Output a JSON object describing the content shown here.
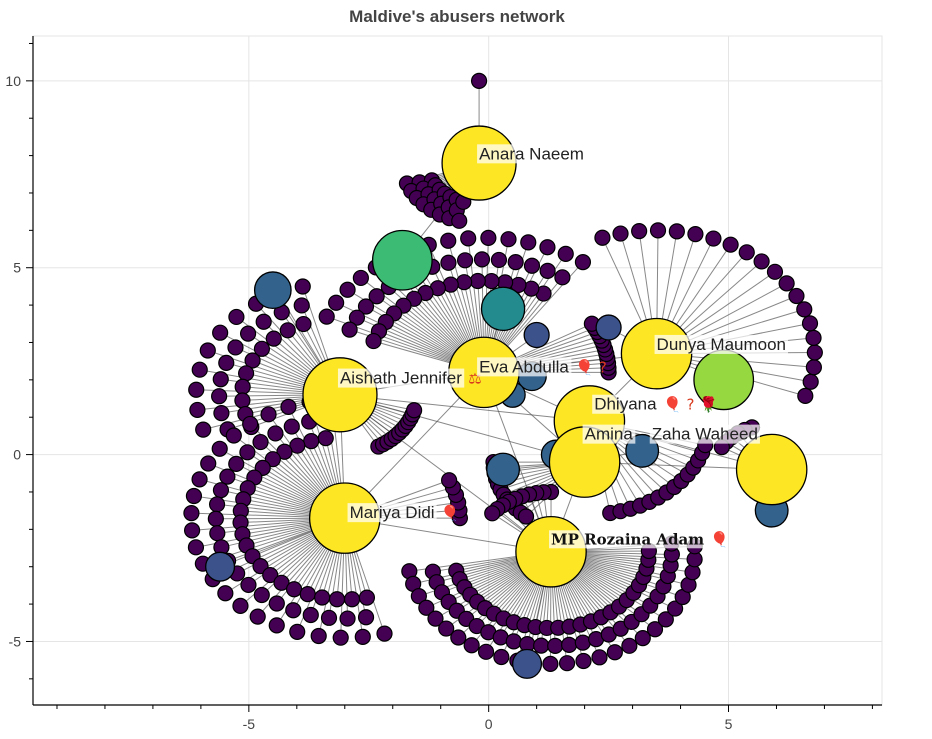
{
  "chart_data": {
    "type": "network",
    "title": "Maldive's abusers network",
    "xlim": [
      -9.5,
      8.2
    ],
    "ylim": [
      -6.7,
      11.2
    ],
    "x_ticks": [
      -5,
      0,
      5
    ],
    "y_ticks": [
      -5,
      0,
      5,
      10
    ],
    "x_tick_labels": [
      "-5",
      "0",
      "5"
    ],
    "y_tick_labels": [
      "-5",
      "0",
      "5",
      "10"
    ],
    "grid": true,
    "hubs": [
      {
        "name": "Anara Naeem",
        "x": -0.2,
        "y": 7.8,
        "size": 1.0,
        "color": "#fde725",
        "label_text": "Anara Naeem",
        "label_offset": [
          0.0,
          0.1
        ],
        "label_style": "plain",
        "icons": ""
      },
      {
        "name": "Aishath Jennifer",
        "x": -3.1,
        "y": 1.6,
        "size": 1.0,
        "color": "#fde725",
        "label_text": "Aishath Jennifer",
        "label_offset": [
          0.0,
          0.3
        ],
        "label_style": "plain",
        "icons": "⚖"
      },
      {
        "name": "Eva Abdulla",
        "x": -0.1,
        "y": 2.2,
        "size": 0.95,
        "color": "#fde725",
        "label_text": "Eva Abdulla",
        "label_offset": [
          -0.1,
          0.0
        ],
        "label_style": "plain",
        "icons": "🎈 ?"
      },
      {
        "name": "Dunya Maumoon",
        "x": 3.5,
        "y": 2.7,
        "size": 0.95,
        "color": "#fde725",
        "label_text": "Dunya Maumoon",
        "label_offset": [
          0.0,
          0.1
        ],
        "label_style": "plain",
        "icons": ""
      },
      {
        "name": "Dhiyana",
        "x": 2.1,
        "y": 0.9,
        "size": 0.95,
        "color": "#fde725",
        "label_text": "Dhiyana",
        "label_offset": [
          0.1,
          0.3
        ],
        "label_style": "plain",
        "icons": "🎈 ? 🌹"
      },
      {
        "name": "Amina",
        "x": 2.0,
        "y": -0.2,
        "size": 0.95,
        "color": "#fde725",
        "label_text": "Amina",
        "label_offset": [
          0.0,
          0.6
        ],
        "label_style": "plain",
        "icons": ""
      },
      {
        "name": "Zaha Waheed",
        "x": 5.9,
        "y": -0.4,
        "size": 0.95,
        "color": "#fde725",
        "label_text": "Zaha Waheed",
        "label_offset": [
          -2.5,
          0.8
        ],
        "label_style": "plain",
        "icons": ""
      },
      {
        "name": "Mariya Didi",
        "x": -3.0,
        "y": -1.7,
        "size": 0.95,
        "color": "#fde725",
        "label_text": "Mariya Didi",
        "label_offset": [
          0.1,
          0.0
        ],
        "label_style": "plain",
        "icons": "🎈"
      },
      {
        "name": "MP Rozaina Adam",
        "x": 1.3,
        "y": -2.6,
        "size": 0.95,
        "color": "#fde725",
        "label_text": "MP Rozaina Adam",
        "label_offset": [
          0.0,
          0.2
        ],
        "label_style": "serif",
        "icons": "🎈"
      }
    ],
    "mid_nodes": [
      {
        "x": -1.8,
        "y": 5.2,
        "size": 0.62,
        "color": "#3cbb75"
      },
      {
        "x": 4.9,
        "y": 2.0,
        "size": 0.62,
        "color": "#95d840"
      },
      {
        "x": 0.3,
        "y": 3.9,
        "size": 0.45,
        "color": "#238a8d"
      },
      {
        "x": -4.5,
        "y": 4.4,
        "size": 0.38,
        "color": "#33638d"
      },
      {
        "x": 5.9,
        "y": -1.5,
        "size": 0.34,
        "color": "#33638d"
      },
      {
        "x": 3.2,
        "y": 0.1,
        "size": 0.34,
        "color": "#33638d"
      },
      {
        "x": 0.3,
        "y": -0.4,
        "size": 0.34,
        "color": "#33638d"
      },
      {
        "x": 0.9,
        "y": 2.1,
        "size": 0.3,
        "color": "#33638d"
      },
      {
        "x": 1.4,
        "y": 0.0,
        "size": 0.3,
        "color": "#33638d"
      },
      {
        "x": 0.5,
        "y": 1.6,
        "size": 0.26,
        "color": "#33638d"
      },
      {
        "x": -5.6,
        "y": -3.0,
        "size": 0.3,
        "color": "#3b528b"
      },
      {
        "x": 0.8,
        "y": -5.6,
        "size": 0.3,
        "color": "#3b528b"
      },
      {
        "x": 1.0,
        "y": 3.2,
        "size": 0.26,
        "color": "#3b528b"
      },
      {
        "x": 2.5,
        "y": 3.4,
        "size": 0.26,
        "color": "#3b528b"
      }
    ],
    "leaf_node_color": "#440154",
    "leaf_groups": [
      {
        "hub": "Anara Naeem",
        "fan": "line",
        "count": 1,
        "radius": 2.2,
        "start_deg": 90,
        "end_deg": 90
      },
      {
        "hub": "Anara Naeem",
        "fan": "arc",
        "count": 22,
        "radius": 1.6,
        "start_deg": 200,
        "end_deg": 255
      },
      {
        "hub": "Aishath Jennifer",
        "fan": "arc",
        "count": 30,
        "radius": 3.0,
        "start_deg": 105,
        "end_deg": 205
      },
      {
        "hub": "Aishath Jennifer",
        "fan": "arc",
        "count": 12,
        "radius": 1.6,
        "start_deg": 300,
        "end_deg": 345
      },
      {
        "hub": "Eva Abdulla",
        "fan": "arc",
        "count": 48,
        "radius": 3.6,
        "start_deg": 55,
        "end_deg": 160
      },
      {
        "hub": "Eva Abdulla",
        "fan": "arc",
        "count": 12,
        "radius": 2.6,
        "start_deg": 0,
        "end_deg": 30
      },
      {
        "hub": "Dunya Maumoon",
        "fan": "arc",
        "count": 20,
        "radius": 3.3,
        "start_deg": -20,
        "end_deg": 110
      },
      {
        "hub": "Dhiyana",
        "fan": "arc",
        "count": 14,
        "radius": 2.5,
        "start_deg": 280,
        "end_deg": 345
      },
      {
        "hub": "Amina",
        "fan": "arc",
        "count": 12,
        "radius": 1.9,
        "start_deg": 180,
        "end_deg": 230
      },
      {
        "hub": "Zaha Waheed",
        "fan": "arc",
        "count": 6,
        "radius": 1.2,
        "start_deg": 110,
        "end_deg": 150
      },
      {
        "hub": "Mariya Didi",
        "fan": "arc",
        "count": 70,
        "radius": 3.2,
        "start_deg": 95,
        "end_deg": 285
      },
      {
        "hub": "Mariya Didi",
        "fan": "arc",
        "count": 6,
        "radius": 2.4,
        "start_deg": 0,
        "end_deg": 25
      },
      {
        "hub": "MP Rozaina Adam",
        "fan": "arc",
        "count": 80,
        "radius": 3.0,
        "start_deg": 190,
        "end_deg": 365
      },
      {
        "hub": "MP Rozaina Adam",
        "fan": "arc",
        "count": 10,
        "radius": 1.6,
        "start_deg": 90,
        "end_deg": 140
      }
    ],
    "cross_edges": [
      [
        "Aishath Jennifer",
        "Eva Abdulla"
      ],
      [
        "Aishath Jennifer",
        "Dhiyana"
      ],
      [
        "Aishath Jennifer",
        "Amina"
      ],
      [
        "Aishath Jennifer",
        "Mariya Didi"
      ],
      [
        "Aishath Jennifer",
        "MP Rozaina Adam"
      ],
      [
        "Eva Abdulla",
        "Dhiyana"
      ],
      [
        "Eva Abdulla",
        "Dunya Maumoon"
      ],
      [
        "Eva Abdulla",
        "MP Rozaina Adam"
      ],
      [
        "Eva Abdulla",
        "Amina"
      ],
      [
        "Mariya Didi",
        "MP Rozaina Adam"
      ],
      [
        "Dhiyana",
        "Zaha Waheed"
      ],
      [
        "Dhiyana",
        "Dunya Maumoon"
      ],
      [
        "Amina",
        "MP Rozaina Adam"
      ],
      [
        "Amina",
        "Zaha Waheed"
      ],
      [
        "Mariya Didi",
        "Eva Abdulla"
      ]
    ]
  }
}
